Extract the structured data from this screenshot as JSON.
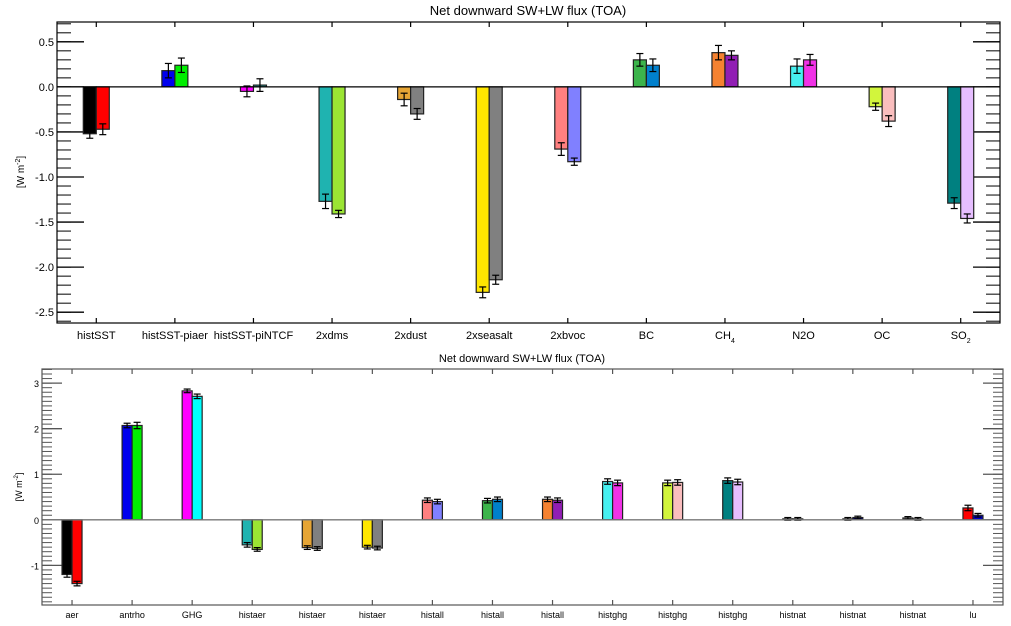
{
  "chart_data": [
    {
      "type": "bar",
      "title": "Net downward SW+LW flux (TOA)",
      "xlabel": "",
      "ylabel": "[W m^-2]",
      "ylabel_parts": {
        "main": "[W m",
        "sup": "-2",
        "close": "]"
      },
      "ylim": [
        -2.62,
        0.72
      ],
      "yticks": [
        0.5,
        0.0,
        -0.5,
        -1.0,
        -1.5,
        -2.0,
        -2.5
      ],
      "ytick_labels": [
        "0.5",
        "0.0",
        "-0.5",
        "-1.0",
        "-1.5",
        "-2.0",
        "-2.5"
      ],
      "yminor_step": 0.1,
      "grid": false,
      "legend": "none",
      "categories": [
        {
          "label": "histSST",
          "sub": ""
        },
        {
          "label": "histSST-piaer",
          "sub": ""
        },
        {
          "label": "histSST-piNTCF",
          "sub": ""
        },
        {
          "label": "2xdms",
          "sub": ""
        },
        {
          "label": "2xdust",
          "sub": ""
        },
        {
          "label": "2xseasalt",
          "sub": ""
        },
        {
          "label": "2xbvoc",
          "sub": ""
        },
        {
          "label": "BC",
          "sub": ""
        },
        {
          "label": "CH",
          "sub": "4"
        },
        {
          "label": "N2O",
          "sub": ""
        },
        {
          "label": "OC",
          "sub": ""
        },
        {
          "label": "SO",
          "sub": "2"
        }
      ],
      "bars": [
        [
          {
            "value": -0.52,
            "err": 0.05,
            "color": "#000000"
          },
          {
            "value": -0.47,
            "err": 0.06,
            "color": "#ff0000"
          }
        ],
        [
          {
            "value": 0.18,
            "err": 0.08,
            "color": "#0000ee"
          },
          {
            "value": 0.24,
            "err": 0.08,
            "color": "#00ee00"
          }
        ],
        [
          {
            "value": -0.05,
            "err": 0.06,
            "color": "#ff00ff"
          },
          {
            "value": 0.02,
            "err": 0.07,
            "color": "#20b2aa"
          }
        ],
        [
          {
            "value": -1.27,
            "err": 0.08,
            "color": "#1fb3b0"
          },
          {
            "value": -1.41,
            "err": 0.04,
            "color": "#9be533"
          }
        ],
        [
          {
            "value": -0.14,
            "err": 0.07,
            "color": "#e6a535"
          },
          {
            "value": -0.3,
            "err": 0.06,
            "color": "#808080"
          }
        ],
        [
          {
            "value": -2.28,
            "err": 0.06,
            "color": "#ffe600"
          },
          {
            "value": -2.14,
            "err": 0.05,
            "color": "#808080"
          }
        ],
        [
          {
            "value": -0.69,
            "err": 0.07,
            "color": "#ff8080"
          },
          {
            "value": -0.83,
            "err": 0.04,
            "color": "#8080ff"
          }
        ],
        [
          {
            "value": 0.3,
            "err": 0.07,
            "color": "#3cb44b"
          },
          {
            "value": 0.24,
            "err": 0.07,
            "color": "#0080cc"
          }
        ],
        [
          {
            "value": 0.38,
            "err": 0.08,
            "color": "#f58231"
          },
          {
            "value": 0.35,
            "err": 0.05,
            "color": "#911eb4"
          }
        ],
        [
          {
            "value": 0.23,
            "err": 0.08,
            "color": "#46f0f0"
          },
          {
            "value": 0.3,
            "err": 0.06,
            "color": "#f032e6"
          }
        ],
        [
          {
            "value": -0.22,
            "err": 0.04,
            "color": "#d2f53c"
          },
          {
            "value": -0.38,
            "err": 0.06,
            "color": "#fabebe"
          }
        ],
        [
          {
            "value": -1.29,
            "err": 0.06,
            "color": "#008080"
          },
          {
            "value": -1.46,
            "err": 0.05,
            "color": "#e6beff"
          }
        ]
      ]
    },
    {
      "type": "bar",
      "title": "Net downward SW+LW flux (TOA)",
      "xlabel": "",
      "ylabel": "[W m^-2]",
      "ylabel_parts": {
        "main": "[W m",
        "sup": "-2",
        "close": "]"
      },
      "ylim": [
        -1.87,
        3.31
      ],
      "yticks": [
        3,
        2,
        1,
        0,
        -1
      ],
      "ytick_labels": [
        "3",
        "2",
        "1",
        "0",
        "-1"
      ],
      "yminor_step": 0.1,
      "grid": false,
      "legend": "none",
      "categories": [
        {
          "label": "aer",
          "sub": ""
        },
        {
          "label": "antrho",
          "sub": ""
        },
        {
          "label": "GHG",
          "sub": ""
        },
        {
          "label": "histaer",
          "sub": ""
        },
        {
          "label": "histaer",
          "sub": ""
        },
        {
          "label": "histaer",
          "sub": ""
        },
        {
          "label": "histall",
          "sub": ""
        },
        {
          "label": "histall",
          "sub": ""
        },
        {
          "label": "histall",
          "sub": ""
        },
        {
          "label": "histghg",
          "sub": ""
        },
        {
          "label": "histghg",
          "sub": ""
        },
        {
          "label": "histghg",
          "sub": ""
        },
        {
          "label": "histnat",
          "sub": ""
        },
        {
          "label": "histnat",
          "sub": ""
        },
        {
          "label": "histnat",
          "sub": ""
        },
        {
          "label": "lu",
          "sub": ""
        }
      ],
      "bars": [
        [
          {
            "value": -1.2,
            "err": 0.06,
            "color": "#000000"
          },
          {
            "value": -1.4,
            "err": 0.05,
            "color": "#ff0000"
          }
        ],
        [
          {
            "value": 2.07,
            "err": 0.05,
            "color": "#0000ee"
          },
          {
            "value": 2.07,
            "err": 0.07,
            "color": "#00ee00"
          }
        ],
        [
          {
            "value": 2.83,
            "err": 0.04,
            "color": "#ff00ff"
          },
          {
            "value": 2.71,
            "err": 0.05,
            "color": "#00ffff"
          }
        ],
        [
          {
            "value": -0.55,
            "err": 0.05,
            "color": "#1fb3b0"
          },
          {
            "value": -0.65,
            "err": 0.04,
            "color": "#9be533"
          }
        ],
        [
          {
            "value": -0.61,
            "err": 0.04,
            "color": "#e6a535"
          },
          {
            "value": -0.63,
            "err": 0.04,
            "color": "#808080"
          }
        ],
        [
          {
            "value": -0.6,
            "err": 0.04,
            "color": "#ffe600"
          },
          {
            "value": -0.62,
            "err": 0.04,
            "color": "#808080"
          }
        ],
        [
          {
            "value": 0.43,
            "err": 0.05,
            "color": "#ff8080"
          },
          {
            "value": 0.4,
            "err": 0.05,
            "color": "#8080ff"
          }
        ],
        [
          {
            "value": 0.42,
            "err": 0.05,
            "color": "#3cb44b"
          },
          {
            "value": 0.45,
            "err": 0.05,
            "color": "#0080cc"
          }
        ],
        [
          {
            "value": 0.45,
            "err": 0.05,
            "color": "#f58231"
          },
          {
            "value": 0.43,
            "err": 0.05,
            "color": "#911eb4"
          }
        ],
        [
          {
            "value": 0.84,
            "err": 0.06,
            "color": "#46f0f0"
          },
          {
            "value": 0.81,
            "err": 0.06,
            "color": "#f032e6"
          }
        ],
        [
          {
            "value": 0.81,
            "err": 0.06,
            "color": "#d2f53c"
          },
          {
            "value": 0.82,
            "err": 0.06,
            "color": "#fabebe"
          }
        ],
        [
          {
            "value": 0.86,
            "err": 0.06,
            "color": "#008080"
          },
          {
            "value": 0.83,
            "err": 0.06,
            "color": "#e6beff"
          }
        ],
        [
          {
            "value": 0.02,
            "err": 0.03,
            "color": "#000000"
          },
          {
            "value": 0.02,
            "err": 0.03,
            "color": "#000000"
          }
        ],
        [
          {
            "value": 0.02,
            "err": 0.03,
            "color": "#000000"
          },
          {
            "value": 0.05,
            "err": 0.03,
            "color": "#000080"
          }
        ],
        [
          {
            "value": 0.04,
            "err": 0.03,
            "color": "#808080"
          },
          {
            "value": 0.02,
            "err": 0.03,
            "color": "#000000"
          }
        ],
        [
          {
            "value": 0.26,
            "err": 0.06,
            "color": "#ff0000"
          },
          {
            "value": 0.1,
            "err": 0.04,
            "color": "#0000cc"
          }
        ]
      ]
    }
  ]
}
